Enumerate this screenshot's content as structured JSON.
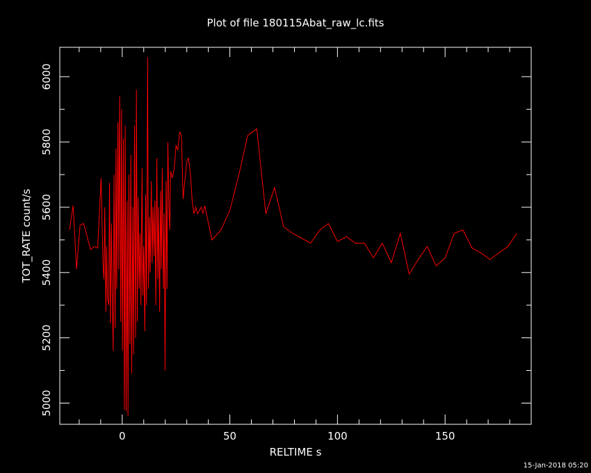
{
  "chart_data": {
    "type": "line",
    "title": "Plot of file 180115Abat_raw_lc.fits",
    "xlabel": "RELTIME   s",
    "ylabel": "TOT_RATE   count/s",
    "xlim": [
      -29,
      190
    ],
    "ylim": [
      4935,
      6090
    ],
    "x_major_ticks": [
      0,
      50,
      100,
      150
    ],
    "x_minor_step": 10,
    "y_major_ticks": [
      5000,
      5200,
      5400,
      5600,
      5800,
      6000
    ],
    "y_minor_step": 100,
    "grid": false,
    "series": [
      {
        "color": "#ff0000",
        "x": [
          -24.5,
          -22.8,
          -21.2,
          -19.6,
          -17.9,
          -16.3,
          -14.7,
          -13.0,
          -11.4,
          -9.8,
          -8.9,
          -8.5,
          -8.1,
          -7.6,
          -7.2,
          -6.8,
          -6.3,
          -5.9,
          -5.5,
          -5.0,
          -4.6,
          -4.2,
          -3.8,
          -3.3,
          -2.9,
          -2.5,
          -2.0,
          -1.6,
          -1.2,
          -0.7,
          -0.3,
          0.1,
          0.6,
          1.0,
          1.4,
          1.8,
          2.3,
          2.7,
          3.1,
          3.6,
          4.0,
          4.4,
          4.9,
          5.3,
          5.7,
          6.2,
          6.6,
          7.0,
          7.4,
          7.9,
          8.3,
          8.7,
          9.2,
          9.6,
          10.0,
          10.5,
          10.9,
          11.3,
          11.8,
          12.2,
          12.6,
          13.0,
          13.5,
          13.9,
          14.3,
          14.8,
          15.2,
          15.6,
          16.1,
          16.5,
          16.9,
          17.4,
          17.8,
          18.2,
          18.6,
          19.1,
          19.5,
          19.9,
          20.4,
          20.8,
          21.2,
          21.7,
          22.1,
          22.5,
          23.3,
          24.2,
          25.0,
          25.8,
          26.7,
          27.5,
          28.3,
          29.2,
          30.0,
          30.8,
          31.7,
          32.5,
          33.3,
          34.2,
          35.0,
          35.8,
          36.7,
          37.5,
          38.3,
          41.7,
          45.8,
          50.0,
          54.2,
          58.3,
          62.5,
          66.7,
          70.8,
          75.0,
          79.2,
          87.5,
          91.7,
          95.8,
          100.0,
          104.2,
          108.3,
          112.5,
          116.7,
          120.8,
          125.0,
          129.2,
          133.3,
          137.5,
          141.7,
          145.8,
          150.0,
          154.2,
          158.3,
          162.5,
          166.7,
          170.8,
          175.0,
          179.2,
          183.3
        ],
        "values": [
          5530,
          5605,
          5410,
          5545,
          5550,
          5510,
          5470,
          5480,
          5475,
          5690,
          5420,
          5380,
          5600,
          5280,
          5480,
          5320,
          5300,
          5675,
          5245,
          5550,
          5330,
          5160,
          5700,
          5230,
          5780,
          5350,
          5860,
          5410,
          5940,
          5250,
          5900,
          5160,
          5810,
          4980,
          5850,
          4975,
          5620,
          4960,
          5700,
          5180,
          5760,
          5090,
          5600,
          5150,
          5850,
          5200,
          5960,
          5250,
          5630,
          5350,
          5520,
          5300,
          5720,
          5330,
          5480,
          5220,
          5640,
          5300,
          6060,
          5350,
          5570,
          5400,
          5680,
          5430,
          5600,
          5450,
          5620,
          5300,
          5750,
          5380,
          5600,
          5280,
          5650,
          5410,
          5720,
          5350,
          5580,
          5100,
          5680,
          5350,
          5800,
          5600,
          5530,
          5710,
          5690,
          5720,
          5790,
          5775,
          5830,
          5820,
          5625,
          5690,
          5740,
          5750,
          5700,
          5620,
          5580,
          5600,
          5580,
          5590,
          5600,
          5580,
          5605,
          5500,
          5530,
          5590,
          5700,
          5820,
          5840,
          5580,
          5660,
          5540,
          5520,
          5490,
          5530,
          5550,
          5495,
          5510,
          5490,
          5490,
          5445,
          5490,
          5430,
          5520,
          5395,
          5440,
          5480,
          5420,
          5445,
          5520,
          5530,
          5475,
          5460,
          5440,
          5460,
          5480,
          5520
        ]
      }
    ]
  },
  "footer": {
    "timestamp": "15-Jan-2018 05:20"
  }
}
